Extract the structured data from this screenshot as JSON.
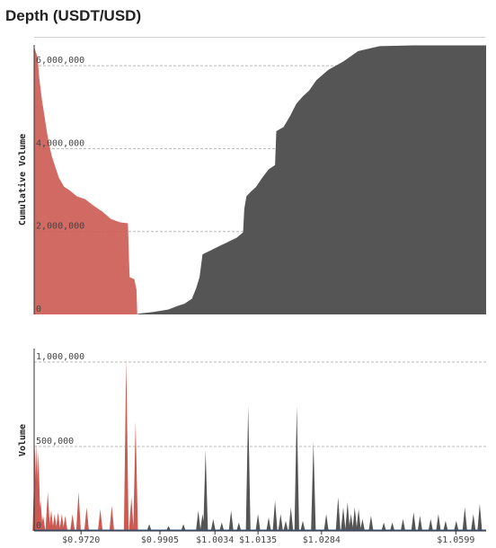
{
  "title": "Depth (USDT/USD)",
  "colors": {
    "bids": "#cc5a52",
    "asks": "#555555",
    "axis": "#333333",
    "grid": "#b8b8b8"
  },
  "chart_data": [
    {
      "type": "area",
      "ylabel": "Cumulative Volume",
      "ylim": [
        0,
        6500000
      ],
      "yticks": [
        {
          "value": 0,
          "label": "0"
        },
        {
          "value": 2000000,
          "label": "2,000,000"
        },
        {
          "value": 4000000,
          "label": "4,000,000"
        },
        {
          "value": 6000000,
          "label": "6,000,000"
        }
      ],
      "xlim": [
        0.961,
        1.067
      ],
      "series": [
        {
          "side": "bids",
          "points": [
            [
              0.961,
              6450000
            ],
            [
              0.9618,
              6200000
            ],
            [
              0.9622,
              5700000
            ],
            [
              0.9628,
              5200000
            ],
            [
              0.9634,
              4800000
            ],
            [
              0.964,
              4400000
            ],
            [
              0.9646,
              4050000
            ],
            [
              0.9652,
              3800000
            ],
            [
              0.966,
              3550000
            ],
            [
              0.9668,
              3300000
            ],
            [
              0.968,
              3080000
            ],
            [
              0.9695,
              2980000
            ],
            [
              0.971,
              2850000
            ],
            [
              0.973,
              2780000
            ],
            [
              0.975,
              2620000
            ],
            [
              0.977,
              2480000
            ],
            [
              0.979,
              2300000
            ],
            [
              0.9812,
              2220000
            ],
            [
              0.983,
              2200000
            ],
            [
              0.9832,
              1500000
            ],
            [
              0.9834,
              900000
            ],
            [
              0.9845,
              850000
            ],
            [
              0.985,
              600000
            ],
            [
              0.9852,
              0
            ]
          ]
        },
        {
          "side": "asks",
          "points": [
            [
              0.9852,
              0
            ],
            [
              0.9855,
              20000
            ],
            [
              0.989,
              60000
            ],
            [
              0.9925,
              120000
            ],
            [
              0.9945,
              200000
            ],
            [
              0.9963,
              260000
            ],
            [
              0.998,
              380000
            ],
            [
              0.999,
              630000
            ],
            [
              0.9998,
              900000
            ],
            [
              1.0005,
              1450000
            ],
            [
              1.0025,
              1550000
            ],
            [
              1.0045,
              1650000
            ],
            [
              1.0065,
              1750000
            ],
            [
              1.0085,
              1850000
            ],
            [
              1.01,
              1980000
            ],
            [
              1.0103,
              2550000
            ],
            [
              1.0108,
              2850000
            ],
            [
              1.0118,
              2960000
            ],
            [
              1.013,
              3070000
            ],
            [
              1.0145,
              3300000
            ],
            [
              1.016,
              3500000
            ],
            [
              1.0175,
              3600000
            ],
            [
              1.0178,
              4420000
            ],
            [
              1.0195,
              4520000
            ],
            [
              1.021,
              4780000
            ],
            [
              1.0225,
              5080000
            ],
            [
              1.024,
              5260000
            ],
            [
              1.0255,
              5400000
            ],
            [
              1.0272,
              5650000
            ],
            [
              1.03,
              5900000
            ],
            [
              1.0335,
              6100000
            ],
            [
              1.037,
              6350000
            ],
            [
              1.042,
              6470000
            ],
            [
              1.05,
              6490000
            ],
            [
              1.067,
              6490000
            ]
          ]
        }
      ]
    },
    {
      "type": "area",
      "ylabel": "Volume",
      "ylim": [
        0,
        1000000
      ],
      "yticks": [
        {
          "value": 0,
          "label": "0"
        },
        {
          "value": 500000,
          "label": "500,000"
        },
        {
          "value": 1000000,
          "label": "1,000,000"
        }
      ],
      "xlim": [
        0.961,
        1.067
      ],
      "xticks": [
        {
          "value": 0.972,
          "label": "$0.9720"
        },
        {
          "value": 0.9905,
          "label": "$0.9905"
        },
        {
          "value": 1.0034,
          "label": "$1.0034"
        },
        {
          "value": 1.0135,
          "label": "$1.0135"
        },
        {
          "value": 1.0284,
          "label": "$1.0284"
        },
        {
          "value": 1.0599,
          "label": "$1.0599"
        }
      ],
      "series": [
        {
          "side": "bids",
          "spikes": [
            [
              0.9612,
              500000
            ],
            [
              0.9616,
              520000
            ],
            [
              0.962,
              470000
            ],
            [
              0.9625,
              180000
            ],
            [
              0.9631,
              90000
            ],
            [
              0.9642,
              230000
            ],
            [
              0.965,
              120000
            ],
            [
              0.9658,
              100000
            ],
            [
              0.9666,
              110000
            ],
            [
              0.9675,
              100000
            ],
            [
              0.9683,
              90000
            ],
            [
              0.97,
              100000
            ],
            [
              0.9714,
              230000
            ],
            [
              0.9733,
              140000
            ],
            [
              0.9765,
              130000
            ],
            [
              0.9792,
              150000
            ],
            [
              0.9826,
              1020000
            ],
            [
              0.9838,
              200000
            ],
            [
              0.9848,
              650000
            ]
          ]
        },
        {
          "side": "asks",
          "spikes": [
            [
              0.988,
              40000
            ],
            [
              0.9925,
              30000
            ],
            [
              0.996,
              40000
            ],
            [
              0.9995,
              120000
            ],
            [
              1.0005,
              100000
            ],
            [
              1.0012,
              480000
            ],
            [
              1.003,
              70000
            ],
            [
              1.005,
              50000
            ],
            [
              1.0072,
              120000
            ],
            [
              1.009,
              50000
            ],
            [
              1.0112,
              740000
            ],
            [
              1.0135,
              100000
            ],
            [
              1.016,
              80000
            ],
            [
              1.0175,
              180000
            ],
            [
              1.0188,
              100000
            ],
            [
              1.02,
              60000
            ],
            [
              1.0212,
              140000
            ],
            [
              1.0226,
              740000
            ],
            [
              1.024,
              60000
            ],
            [
              1.0265,
              530000
            ],
            [
              1.0295,
              100000
            ],
            [
              1.0323,
              200000
            ],
            [
              1.0335,
              140000
            ],
            [
              1.0345,
              170000
            ],
            [
              1.0353,
              100000
            ],
            [
              1.0362,
              140000
            ],
            [
              1.0371,
              130000
            ],
            [
              1.038,
              70000
            ],
            [
              1.04,
              90000
            ],
            [
              1.043,
              50000
            ],
            [
              1.045,
              50000
            ],
            [
              1.0475,
              70000
            ],
            [
              1.05,
              110000
            ],
            [
              1.0515,
              90000
            ],
            [
              1.054,
              70000
            ],
            [
              1.0558,
              100000
            ],
            [
              1.0575,
              60000
            ],
            [
              1.06,
              60000
            ],
            [
              1.062,
              140000
            ],
            [
              1.064,
              100000
            ],
            [
              1.0655,
              160000
            ]
          ]
        }
      ]
    }
  ]
}
